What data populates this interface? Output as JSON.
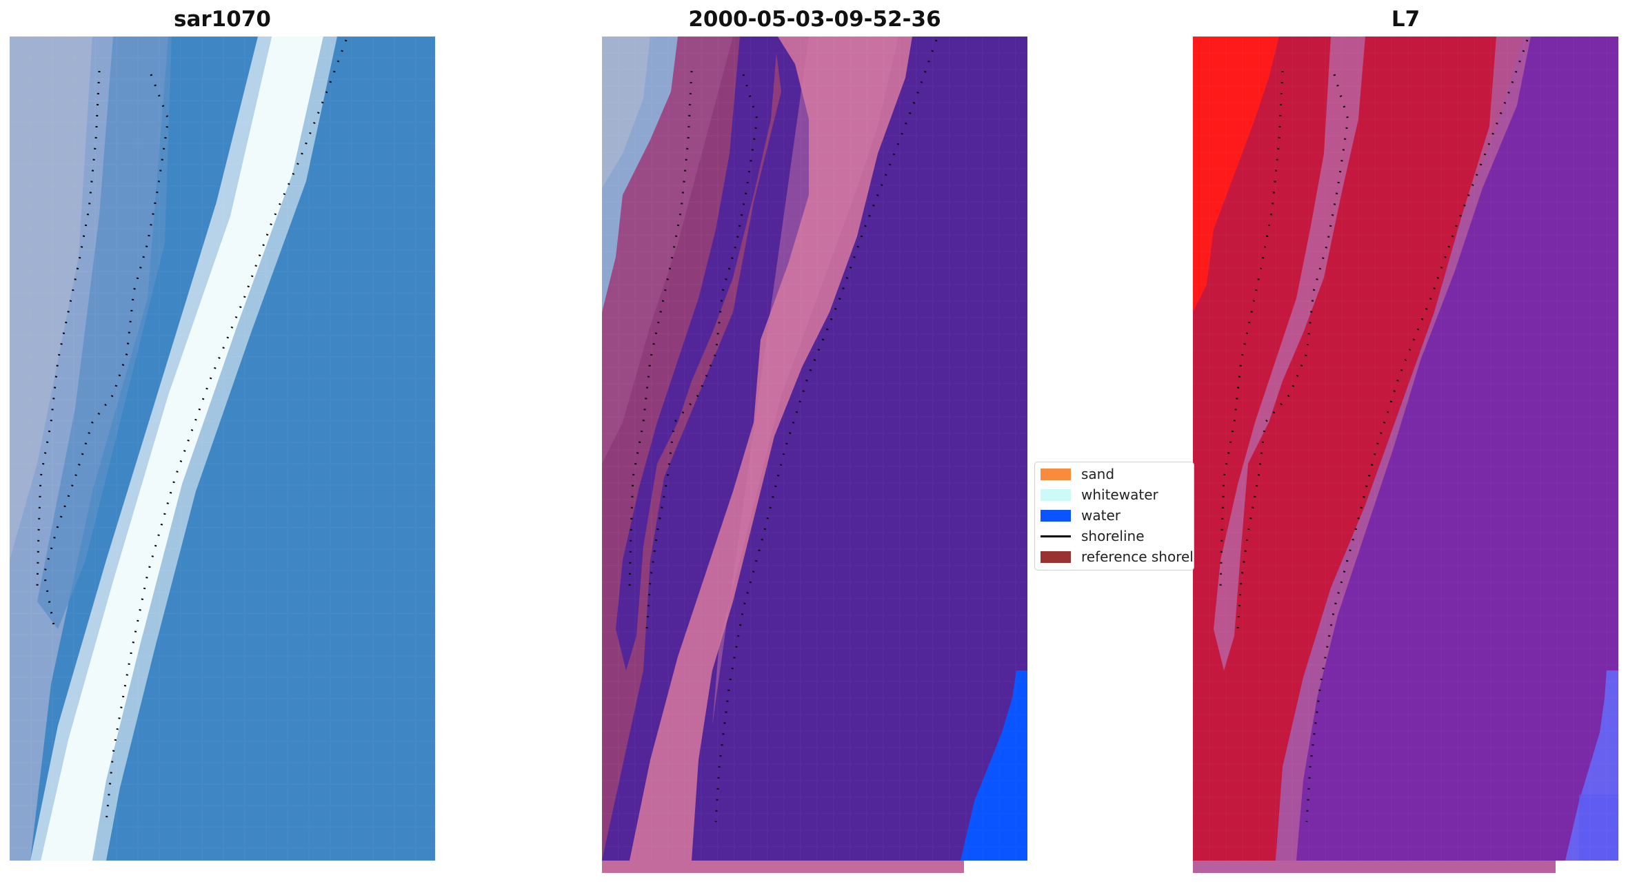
{
  "panels": [
    {
      "title": "sar1070"
    },
    {
      "title": "2000-05-03-09-52-36"
    },
    {
      "title": "L7"
    }
  ],
  "legend": {
    "items": [
      {
        "label": "sand",
        "color": "#f98b3e",
        "kind": "patch"
      },
      {
        "label": "whitewater",
        "color": "#ccfaf6",
        "kind": "patch"
      },
      {
        "label": "water",
        "color": "#0a55ff",
        "kind": "patch"
      },
      {
        "label": "shoreline",
        "color": "#000000",
        "kind": "line"
      },
      {
        "label": "reference shoreline",
        "color": "#9a3232",
        "kind": "patch"
      }
    ]
  },
  "colors": {
    "rgb_water": "#3f86c4",
    "rgb_whitewater": "#f2fbfb",
    "rgb_land": "#8ea7d1",
    "class_sand": "#9a4b86",
    "class_pink": "#c36b9c",
    "class_water": "#522598",
    "class_bright_water": "#0a55ff",
    "index_red": "#c4183e",
    "index_bright_red": "#ff1a1a",
    "index_purple": "#7a2aa6",
    "index_blue": "#6860ee"
  }
}
